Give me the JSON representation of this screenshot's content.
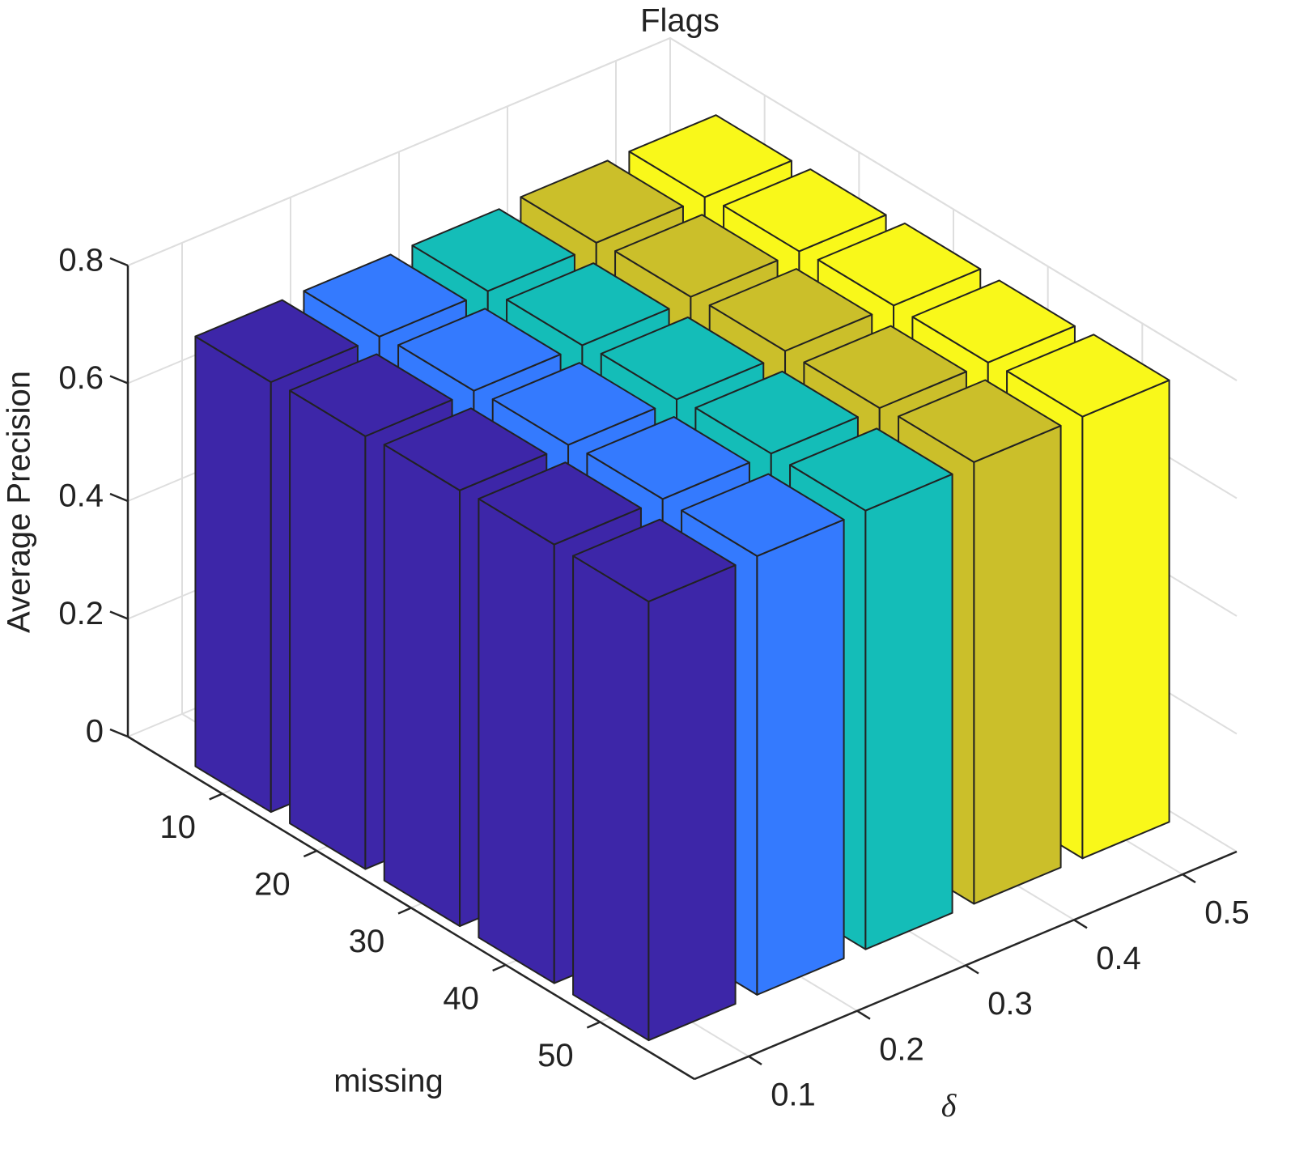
{
  "chart_data": {
    "type": "bar3d",
    "title": "Flags",
    "xlabel": "missing",
    "ylabel": "δ",
    "zlabel": "Average Precision",
    "x": [
      10,
      20,
      30,
      40,
      50
    ],
    "y": [
      0.1,
      0.2,
      0.3,
      0.4,
      0.5
    ],
    "colors": [
      "#3d26a8",
      "#347afe",
      "#14bdb8",
      "#cbbf2a",
      "#f9f81a"
    ],
    "values": [
      [
        0.73,
        0.73,
        0.73,
        0.735,
        0.735
      ],
      [
        0.735,
        0.735,
        0.735,
        0.74,
        0.74
      ],
      [
        0.74,
        0.74,
        0.74,
        0.745,
        0.745
      ],
      [
        0.745,
        0.745,
        0.745,
        0.745,
        0.745
      ],
      [
        0.745,
        0.745,
        0.745,
        0.75,
        0.75
      ]
    ],
    "xlim": [
      0,
      60
    ],
    "ylim": [
      0.05,
      0.55
    ],
    "zlim": [
      0,
      0.8
    ],
    "xticks": [
      10,
      20,
      30,
      40,
      50
    ],
    "yticks": [
      0.1,
      0.2,
      0.3,
      0.4,
      0.5
    ],
    "zticks": [
      0,
      0.2,
      0.4,
      0.6,
      0.8
    ],
    "grid": true
  }
}
